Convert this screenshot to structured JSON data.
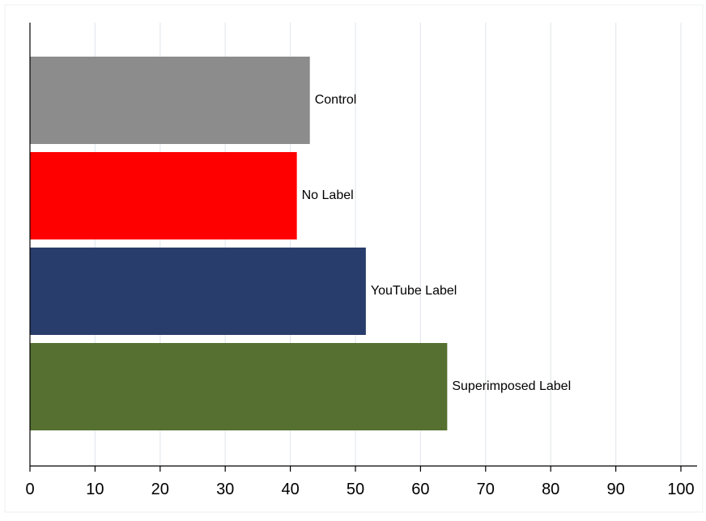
{
  "chart_data": {
    "type": "bar",
    "orientation": "horizontal",
    "categories": [
      "Control",
      "No Label",
      "YouTube Label",
      "Superimposed Label"
    ],
    "values": [
      43,
      41,
      51.6,
      64.1
    ],
    "colors": [
      "#8c8c8c",
      "#ff0000",
      "#283d6b",
      "#557030"
    ],
    "xlim": [
      0,
      100
    ],
    "xticks": [
      0,
      10,
      20,
      30,
      40,
      50,
      60,
      70,
      80,
      90,
      100
    ],
    "title": "",
    "xlabel": "",
    "ylabel": "",
    "grid": "vertical",
    "bar_labels": "right of bar"
  }
}
